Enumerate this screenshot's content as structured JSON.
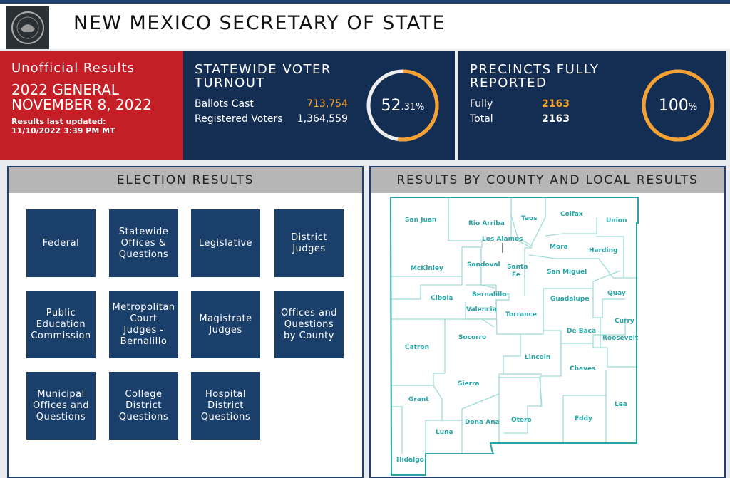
{
  "header": {
    "title": "NEW MEXICO SECRETARY OF STATE",
    "seal_text": "THE GREAT SEAL OF THE STATE OF NEW MEXICO"
  },
  "status": {
    "label": "Unofficial Results",
    "election": "2022 GENERAL",
    "date": "NOVEMBER 8, 2022",
    "updated_label": "Results last updated:",
    "updated_value": "11/10/2022 3:39 PM MT"
  },
  "turnout": {
    "title_line1": "STATEWIDE VOTER",
    "title_line2": "TURNOUT",
    "ballots_label": "Ballots Cast",
    "ballots_value": "713,754",
    "registered_label": "Registered Voters",
    "registered_value": "1,364,559",
    "percent_main": "52",
    "percent_dec": ".31%",
    "percent": 52.31
  },
  "precincts": {
    "title_line1": "PRECINCTS FULLY",
    "title_line2": "REPORTED",
    "fully_label": "Fully",
    "fully_value": "2163",
    "total_label": "Total",
    "total_value": "2163",
    "percent_main": "100",
    "percent_unit": "%",
    "percent": 100
  },
  "colors": {
    "accent": "#f5a030",
    "navy": "#142d52",
    "red": "#c41f27",
    "button": "#1b3f6b",
    "map": "#2aa4a4"
  },
  "election_results": {
    "title": "ELECTION RESULTS",
    "buttons": [
      "Federal",
      "Statewide Offices & Questions",
      "Legislative",
      "District Judges",
      "Public Education Commission",
      "Metropolitan Court Judges - Bernalillo",
      "Magistrate Judges",
      "Offices and Questions by County",
      "Municipal Offices and Questions",
      "College District Questions",
      "Hospital District Questions"
    ]
  },
  "county_results": {
    "title": "RESULTS BY COUNTY AND LOCAL RESULTS",
    "counties": [
      "San Juan",
      "Rio Arriba",
      "Taos",
      "Colfax",
      "Union",
      "Los Alamos",
      "Mora",
      "Harding",
      "McKinley",
      "Sandoval",
      "Santa Fe",
      "San Miguel",
      "Cibola",
      "Bernalillo",
      "Valencia",
      "Torrance",
      "Guadalupe",
      "Quay",
      "Curry",
      "De Baca",
      "Roosevelt",
      "Catron",
      "Socorro",
      "Lincoln",
      "Chaves",
      "Sierra",
      "Grant",
      "Otero",
      "Eddy",
      "Lea",
      "Luna",
      "Dona Ana",
      "Hidalgo"
    ]
  }
}
